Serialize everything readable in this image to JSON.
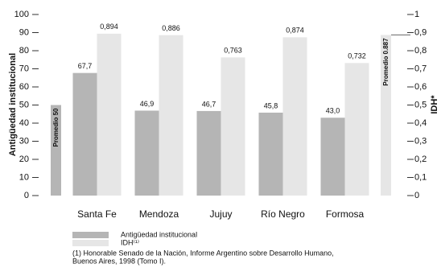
{
  "chart_data": {
    "type": "bar",
    "categories": [
      "Santa Fe",
      "Mendoza",
      "Jujuy",
      "Río Negro",
      "Formosa"
    ],
    "series": [
      {
        "name": "Antigüedad institucional",
        "color": "#b5b5b5",
        "values": [
          67.7,
          46.9,
          46.7,
          45.8,
          43.0
        ],
        "value_labels": [
          "67,7",
          "46,9",
          "46,7",
          "45,8",
          "43,0"
        ]
      },
      {
        "name": "IDH⁽¹⁾",
        "color": "#e6e6e6",
        "axis": "y2",
        "values": [
          0.894,
          0.886,
          0.763,
          0.874,
          0.732
        ],
        "value_labels": [
          "0,894",
          "0,886",
          "0,763",
          "0,874",
          "0,732"
        ]
      }
    ],
    "ylabel": "Antigüedad institucional",
    "y2label": "IDH*",
    "ylim": [
      0,
      100
    ],
    "yticks": [
      0,
      10,
      20,
      30,
      40,
      50,
      60,
      70,
      80,
      90,
      100
    ],
    "y2lim": [
      0,
      1
    ],
    "y2ticks": [
      0,
      {
        "value": 0.1,
        "label": "0,1"
      },
      {
        "value": 0.2,
        "label": "0,2"
      },
      {
        "value": 0.3,
        "label": "0,3"
      },
      {
        "value": 0.4,
        "label": "0,4"
      },
      {
        "value": 0.5,
        "label": "0,5"
      },
      {
        "value": 0.6,
        "label": "0,6"
      },
      {
        "value": 0.7,
        "label": "0,7"
      },
      {
        "value": 0.8,
        "label": "0,8"
      },
      {
        "value": 0.9,
        "label": "0,9"
      },
      1
    ],
    "reference_bars": [
      {
        "label": "Promedio 50",
        "value": 50,
        "axis": "y",
        "color": "#b5b5b5"
      },
      {
        "label": "Promedio 0.887",
        "value": 0.887,
        "axis": "y2",
        "color": "#e6e6e6"
      }
    ],
    "footnote": [
      "(1) Honorable Senado de la Nación, Informe Argentino sobre Desarrollo Humano,",
      "Buenos Aires, 1998 (Tomo I)."
    ]
  }
}
